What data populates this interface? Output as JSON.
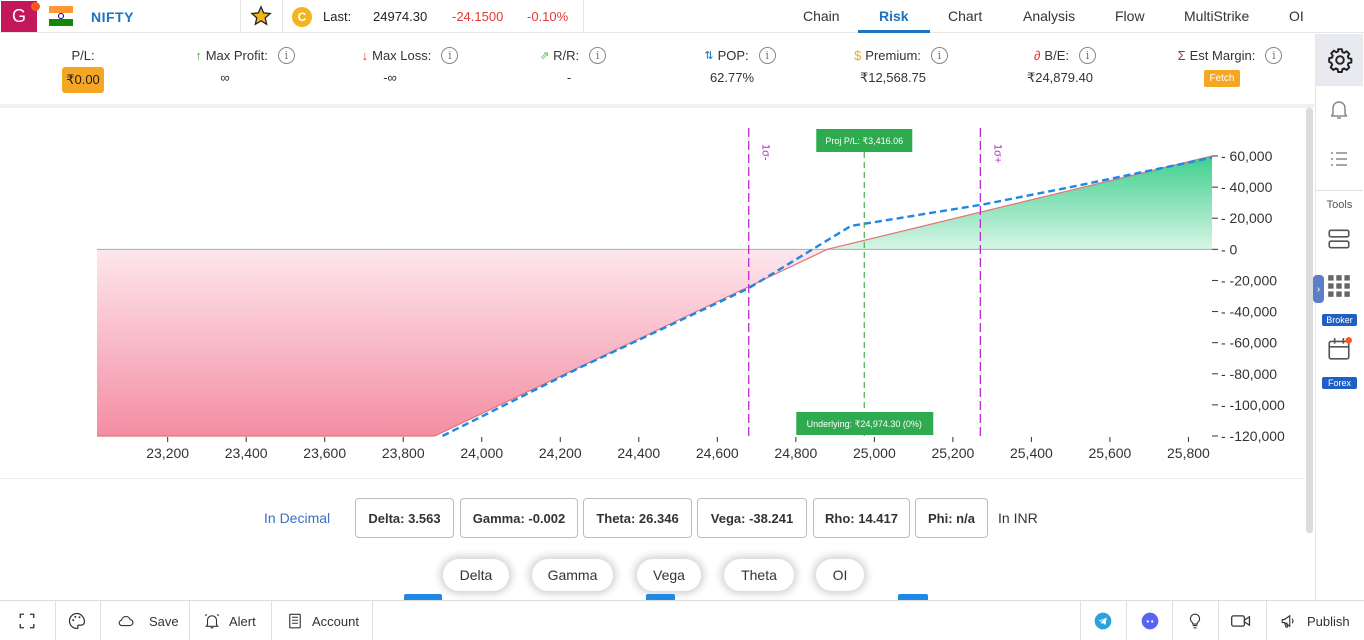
{
  "header": {
    "logo_letter": "G",
    "symbol": "NIFTY",
    "coin_letter": "C",
    "last_label": "Last:",
    "last_value": "24974.30",
    "last_change": "-24.1500",
    "last_change_pct": "-0.10%",
    "tabs": [
      {
        "label": "Chain"
      },
      {
        "label": "Risk",
        "active": true
      },
      {
        "label": "Chart"
      },
      {
        "label": "Analysis"
      },
      {
        "label": "Flow"
      },
      {
        "label": "MultiStrike"
      },
      {
        "label": "OI"
      }
    ]
  },
  "stats": {
    "pl": {
      "label": "P/L:",
      "value": "₹0.00"
    },
    "max_profit": {
      "arrow": "↑",
      "label": "Max Profit:",
      "value": "∞"
    },
    "max_loss": {
      "arrow": "↓",
      "label": "Max Loss:",
      "value": "-∞"
    },
    "rr": {
      "label": "R/R:",
      "value": "-"
    },
    "pop": {
      "label": "POP:",
      "value": "62.77%"
    },
    "premium": {
      "label": "Premium:",
      "value": "₹12,568.75"
    },
    "be": {
      "label": "B/E:",
      "value": "₹24,879.40"
    },
    "est_margin": {
      "label": "Est Margin:",
      "value": "Fetch"
    }
  },
  "chart_data": {
    "type": "line",
    "title": "",
    "xlabel": "",
    "ylabel": "",
    "x_ticks": [
      23200,
      23400,
      23600,
      23800,
      24000,
      24200,
      24400,
      24600,
      24800,
      25000,
      25200,
      25400,
      25600,
      25800
    ],
    "x_tick_labels": [
      "23,200",
      "23,400",
      "23,600",
      "23,800",
      "24,000",
      "24,200",
      "24,400",
      "24,600",
      "24,800",
      "25,000",
      "25,200",
      "25,400",
      "25,600",
      "25,800"
    ],
    "y_ticks": [
      60000,
      40000,
      20000,
      0,
      -20000,
      -40000,
      -60000,
      -80000,
      -100000,
      -120000
    ],
    "y_tick_labels": [
      "60,000",
      "40,000",
      "20,000",
      "0",
      "-20,000",
      "-40,000",
      "-60,000",
      "-80,000",
      "-100,000",
      "-120,000"
    ],
    "xlim": [
      23020,
      25860
    ],
    "ylim": [
      -120000,
      60000
    ],
    "series": [
      {
        "color": "#e57373",
        "style": "solid",
        "x": [
          23020,
          23880,
          24880,
          25860
        ],
        "y": [
          -120000,
          -120000,
          0,
          60000
        ]
      },
      {
        "color": "#1e88e5",
        "style": "dashed",
        "x": [
          23900,
          24250,
          24680,
          24940,
          25280,
          25500,
          25860
        ],
        "y": [
          -120000,
          -76000,
          -25000,
          15000,
          29000,
          40000,
          59000
        ]
      }
    ],
    "sigma_lines": [
      {
        "x": 24680,
        "label": "1σ-"
      },
      {
        "x": 25270,
        "label": "1σ+"
      }
    ],
    "underlying_x": 24974.3,
    "proj_label": "Proj P/L: ₹3,416.06",
    "underlying_label": "Underlying: ₹24,974.30 (0%)",
    "colors": {
      "profit": "#3ecf8e",
      "loss": "#f48fb1",
      "sigma": "#c026d3",
      "underlying": "#4caf50"
    }
  },
  "greeks": {
    "left_label": "In Decimal",
    "right_label": "In INR",
    "items": [
      "Delta: 3.563",
      "Gamma: -0.002",
      "Theta: 26.346",
      "Vega: -38.241",
      "Rho: 14.417",
      "Phi: n/a"
    ]
  },
  "pills": [
    "Delta",
    "Gamma",
    "Vega",
    "Theta",
    "OI"
  ],
  "sidebar": {
    "tools_label": "Tools",
    "broker_label": "Broker",
    "forex_label": "Forex"
  },
  "bottom": {
    "save": "Save",
    "alert": "Alert",
    "account": "Account",
    "publish": "Publish"
  }
}
